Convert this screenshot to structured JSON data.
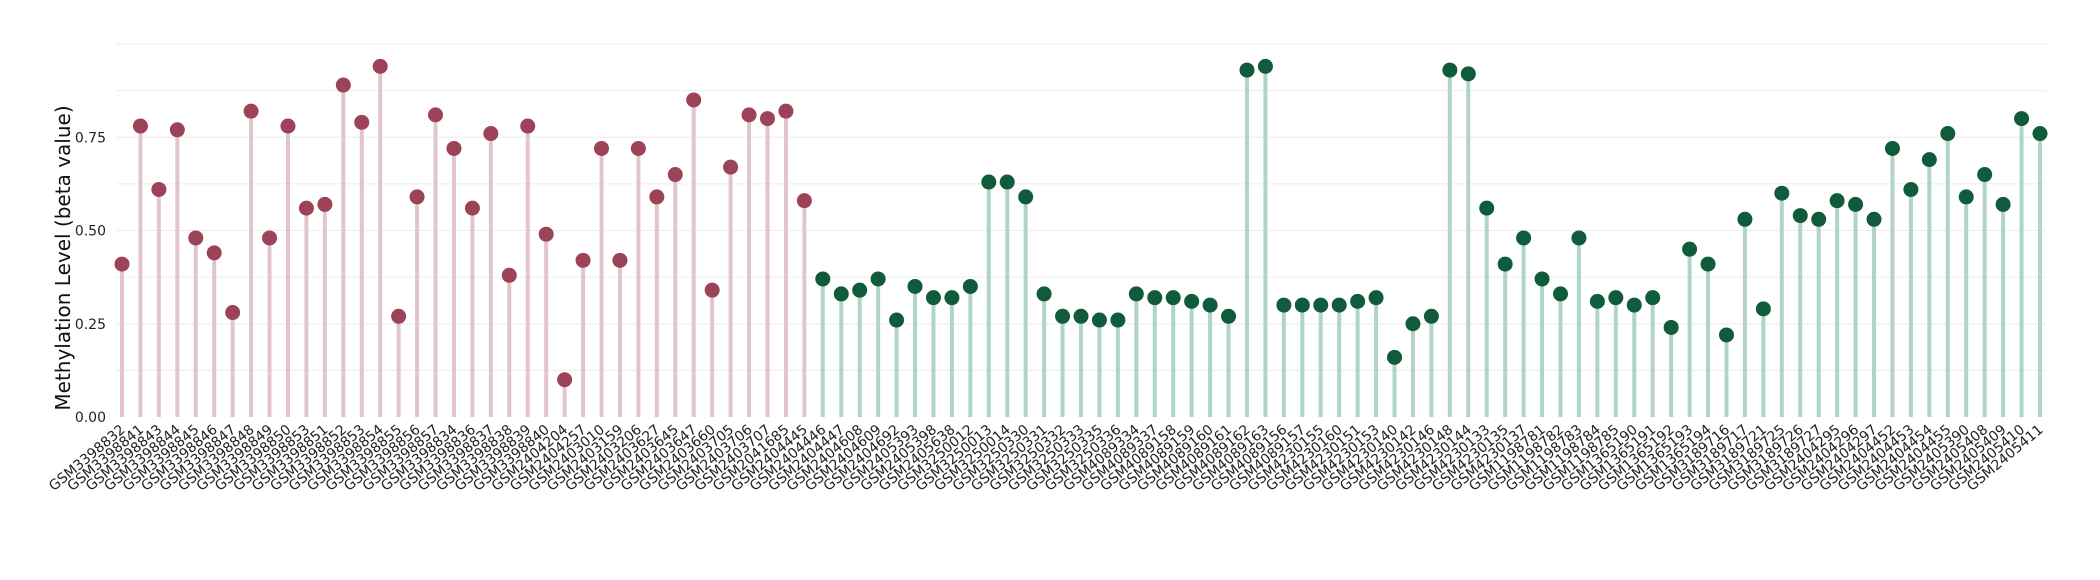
{
  "chart_data": {
    "type": "lollipop",
    "title": "",
    "xlabel": "",
    "ylabel": "Methylation Level (beta value)",
    "ylim": [
      0,
      1.0
    ],
    "yticks": [
      0.0,
      0.25,
      0.5,
      0.75
    ],
    "ytick_labels": [
      "0.00",
      "0.25",
      "0.50",
      "0.75"
    ],
    "grid": true,
    "legend": "none",
    "colors": {
      "group_a_stem": "#e2c4cc",
      "group_a_point": "#9c4357",
      "group_b_stem": "#b2d4c7",
      "group_b_point": "#0f5b3c",
      "grid": "#ececec"
    },
    "points": [
      {
        "label": "GSM3398832",
        "value": 0.41,
        "group": "a"
      },
      {
        "label": "GSM3398841",
        "value": 0.78,
        "group": "a"
      },
      {
        "label": "GSM3398843",
        "value": 0.61,
        "group": "a"
      },
      {
        "label": "GSM3398844",
        "value": 0.77,
        "group": "a"
      },
      {
        "label": "GSM3398845",
        "value": 0.48,
        "group": "a"
      },
      {
        "label": "GSM3398846",
        "value": 0.44,
        "group": "a"
      },
      {
        "label": "GSM3398847",
        "value": 0.28,
        "group": "a"
      },
      {
        "label": "GSM3398848",
        "value": 0.82,
        "group": "a"
      },
      {
        "label": "GSM3398849",
        "value": 0.48,
        "group": "a"
      },
      {
        "label": "GSM3398850",
        "value": 0.78,
        "group": "a"
      },
      {
        "label": "GSM3398853",
        "value": 0.56,
        "group": "a"
      },
      {
        "label": "GSM3398851",
        "value": 0.57,
        "group": "a"
      },
      {
        "label": "GSM3398852",
        "value": 0.89,
        "group": "a"
      },
      {
        "label": "GSM3398853",
        "value": 0.79,
        "group": "a"
      },
      {
        "label": "GSM3398854",
        "value": 0.94,
        "group": "a"
      },
      {
        "label": "GSM3398855",
        "value": 0.27,
        "group": "a"
      },
      {
        "label": "GSM3398856",
        "value": 0.59,
        "group": "a"
      },
      {
        "label": "GSM3398857",
        "value": 0.81,
        "group": "a"
      },
      {
        "label": "GSM3398834",
        "value": 0.72,
        "group": "a"
      },
      {
        "label": "GSM3398836",
        "value": 0.56,
        "group": "a"
      },
      {
        "label": "GSM3398837",
        "value": 0.76,
        "group": "a"
      },
      {
        "label": "GSM3398838",
        "value": 0.38,
        "group": "a"
      },
      {
        "label": "GSM3398839",
        "value": 0.78,
        "group": "a"
      },
      {
        "label": "GSM3398840",
        "value": 0.49,
        "group": "a"
      },
      {
        "label": "GSM2404204",
        "value": 0.1,
        "group": "a"
      },
      {
        "label": "GSM2404257",
        "value": 0.42,
        "group": "a"
      },
      {
        "label": "GSM2403010",
        "value": 0.72,
        "group": "a"
      },
      {
        "label": "GSM2403159",
        "value": 0.42,
        "group": "a"
      },
      {
        "label": "GSM2403206",
        "value": 0.72,
        "group": "a"
      },
      {
        "label": "GSM2403627",
        "value": 0.59,
        "group": "a"
      },
      {
        "label": "GSM2403645",
        "value": 0.65,
        "group": "a"
      },
      {
        "label": "GSM2403647",
        "value": 0.85,
        "group": "a"
      },
      {
        "label": "GSM2403660",
        "value": 0.34,
        "group": "a"
      },
      {
        "label": "GSM2403705",
        "value": 0.67,
        "group": "a"
      },
      {
        "label": "GSM2403706",
        "value": 0.81,
        "group": "a"
      },
      {
        "label": "GSM2403707",
        "value": 0.8,
        "group": "a"
      },
      {
        "label": "GSM2041685",
        "value": 0.82,
        "group": "a"
      },
      {
        "label": "GSM2404445",
        "value": 0.58,
        "group": "a"
      },
      {
        "label": "GSM2404446",
        "value": 0.37,
        "group": "b"
      },
      {
        "label": "GSM2404447",
        "value": 0.33,
        "group": "b"
      },
      {
        "label": "GSM2404608",
        "value": 0.34,
        "group": "b"
      },
      {
        "label": "GSM2404609",
        "value": 0.37,
        "group": "b"
      },
      {
        "label": "GSM2404692",
        "value": 0.26,
        "group": "b"
      },
      {
        "label": "GSM2405393",
        "value": 0.35,
        "group": "b"
      },
      {
        "label": "GSM2405398",
        "value": 0.32,
        "group": "b"
      },
      {
        "label": "GSM2405638",
        "value": 0.32,
        "group": "b"
      },
      {
        "label": "GSM3250012",
        "value": 0.35,
        "group": "b"
      },
      {
        "label": "GSM3250013",
        "value": 0.63,
        "group": "b"
      },
      {
        "label": "GSM3250014",
        "value": 0.63,
        "group": "b"
      },
      {
        "label": "GSM3250330",
        "value": 0.59,
        "group": "b"
      },
      {
        "label": "GSM3250331",
        "value": 0.33,
        "group": "b"
      },
      {
        "label": "GSM3250332",
        "value": 0.27,
        "group": "b"
      },
      {
        "label": "GSM3250333",
        "value": 0.27,
        "group": "b"
      },
      {
        "label": "GSM3250335",
        "value": 0.26,
        "group": "b"
      },
      {
        "label": "GSM3250336",
        "value": 0.26,
        "group": "b"
      },
      {
        "label": "GSM4089334",
        "value": 0.33,
        "group": "b"
      },
      {
        "label": "GSM4089337",
        "value": 0.32,
        "group": "b"
      },
      {
        "label": "GSM4089158",
        "value": 0.32,
        "group": "b"
      },
      {
        "label": "GSM4089159",
        "value": 0.31,
        "group": "b"
      },
      {
        "label": "GSM4089160",
        "value": 0.3,
        "group": "b"
      },
      {
        "label": "GSM4089161",
        "value": 0.27,
        "group": "b"
      },
      {
        "label": "GSM4089162",
        "value": 0.93,
        "group": "b"
      },
      {
        "label": "GSM4089163",
        "value": 0.94,
        "group": "b"
      },
      {
        "label": "GSM4089156",
        "value": 0.3,
        "group": "b"
      },
      {
        "label": "GSM4089157",
        "value": 0.3,
        "group": "b"
      },
      {
        "label": "GSM4230155",
        "value": 0.3,
        "group": "b"
      },
      {
        "label": "GSM4230160",
        "value": 0.3,
        "group": "b"
      },
      {
        "label": "GSM4230151",
        "value": 0.31,
        "group": "b"
      },
      {
        "label": "GSM4230153",
        "value": 0.32,
        "group": "b"
      },
      {
        "label": "GSM4230140",
        "value": 0.16,
        "group": "b"
      },
      {
        "label": "GSM4230142",
        "value": 0.25,
        "group": "b"
      },
      {
        "label": "GSM4230146",
        "value": 0.27,
        "group": "b"
      },
      {
        "label": "GSM4230148",
        "value": 0.93,
        "group": "b"
      },
      {
        "label": "GSM4230144",
        "value": 0.92,
        "group": "b"
      },
      {
        "label": "GSM4230133",
        "value": 0.56,
        "group": "b"
      },
      {
        "label": "GSM4230135",
        "value": 0.41,
        "group": "b"
      },
      {
        "label": "GSM4230137",
        "value": 0.48,
        "group": "b"
      },
      {
        "label": "GSM1198781",
        "value": 0.37,
        "group": "b"
      },
      {
        "label": "GSM1198782",
        "value": 0.33,
        "group": "b"
      },
      {
        "label": "GSM1198783",
        "value": 0.48,
        "group": "b"
      },
      {
        "label": "GSM1198784",
        "value": 0.31,
        "group": "b"
      },
      {
        "label": "GSM1198785",
        "value": 0.32,
        "group": "b"
      },
      {
        "label": "GSM1365190",
        "value": 0.3,
        "group": "b"
      },
      {
        "label": "GSM1365191",
        "value": 0.32,
        "group": "b"
      },
      {
        "label": "GSM1365192",
        "value": 0.24,
        "group": "b"
      },
      {
        "label": "GSM1365193",
        "value": 0.45,
        "group": "b"
      },
      {
        "label": "GSM1365194",
        "value": 0.41,
        "group": "b"
      },
      {
        "label": "GSM3189716",
        "value": 0.22,
        "group": "b"
      },
      {
        "label": "GSM3189717",
        "value": 0.53,
        "group": "b"
      },
      {
        "label": "GSM3189721",
        "value": 0.29,
        "group": "b"
      },
      {
        "label": "GSM3189725",
        "value": 0.6,
        "group": "b"
      },
      {
        "label": "GSM3189726",
        "value": 0.54,
        "group": "b"
      },
      {
        "label": "GSM3189727",
        "value": 0.53,
        "group": "b"
      },
      {
        "label": "GSM2404295",
        "value": 0.58,
        "group": "b"
      },
      {
        "label": "GSM2404296",
        "value": 0.57,
        "group": "b"
      },
      {
        "label": "GSM2404297",
        "value": 0.53,
        "group": "b"
      },
      {
        "label": "GSM2404452",
        "value": 0.72,
        "group": "b"
      },
      {
        "label": "GSM2404453",
        "value": 0.61,
        "group": "b"
      },
      {
        "label": "GSM2404454",
        "value": 0.69,
        "group": "b"
      },
      {
        "label": "GSM2404455",
        "value": 0.76,
        "group": "b"
      },
      {
        "label": "GSM2405390",
        "value": 0.59,
        "group": "b"
      },
      {
        "label": "GSM2405408",
        "value": 0.65,
        "group": "b"
      },
      {
        "label": "GSM2405409",
        "value": 0.57,
        "group": "b"
      },
      {
        "label": "GSM2405410",
        "value": 0.8,
        "group": "b"
      },
      {
        "label": "GSM2405411",
        "value": 0.76,
        "group": "b"
      }
    ]
  }
}
